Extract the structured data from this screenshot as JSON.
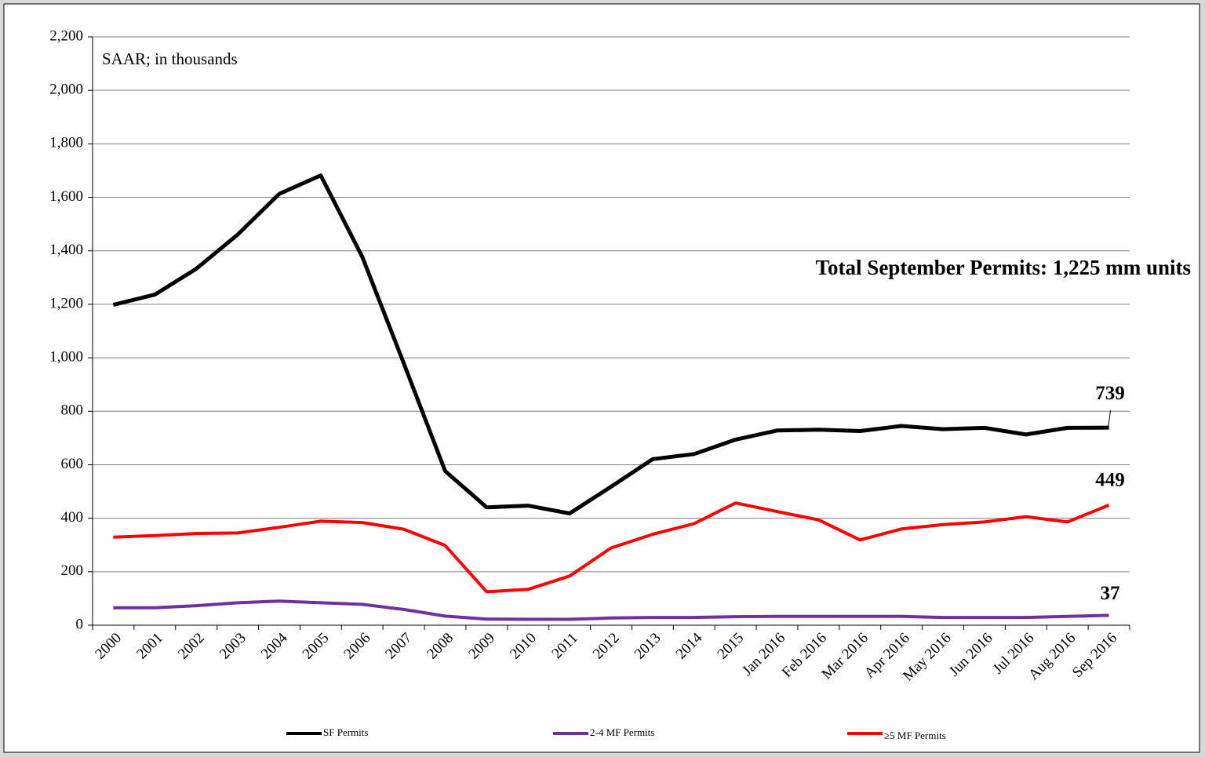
{
  "chart_data": {
    "type": "line",
    "annotations": [
      "SAAR; in thousands",
      "Total September Permits: 1,225 mm units"
    ],
    "categories": [
      "2000",
      "2001",
      "2002",
      "2003",
      "2004",
      "2005",
      "2006",
      "2007",
      "2008",
      "2009",
      "2010",
      "2011",
      "2012",
      "2013",
      "2014",
      "2015",
      "Jan 2016",
      "Feb 2016",
      "Mar 2016",
      "Apr 2016",
      "May 2016",
      "Jun 2016",
      "Jul 2016",
      "Aug 2016",
      "Sep 2016"
    ],
    "series": [
      {
        "name": "SF Permits",
        "color": "#000000",
        "values": [
          1198,
          1236,
          1333,
          1461,
          1613,
          1682,
          1378,
          980,
          576,
          441,
          447,
          418,
          518,
          621,
          640,
          694,
          728,
          731,
          726,
          745,
          733,
          738,
          713,
          738,
          739
        ]
      },
      {
        "name": "2-4 MF Permits",
        "color": "#7030a0",
        "values": [
          65,
          65,
          73,
          84,
          90,
          84,
          78,
          59,
          34,
          23,
          22,
          22,
          27,
          29,
          29,
          32,
          33,
          33,
          33,
          33,
          29,
          29,
          29,
          33,
          37
        ]
      },
      {
        "name": "≥5 MF Permits",
        "color": "#ff0000",
        "values": [
          329,
          335,
          343,
          345,
          366,
          389,
          384,
          359,
          298,
          125,
          134,
          184,
          289,
          340,
          380,
          457,
          425,
          394,
          319,
          360,
          376,
          386,
          406,
          386,
          449
        ]
      }
    ],
    "ylim": [
      0,
      2200
    ],
    "yticks": [
      0,
      200,
      400,
      600,
      800,
      {
        "value": 1000,
        "label": "1,000"
      },
      {
        "value": 1200,
        "label": "1,200"
      },
      {
        "value": 1400,
        "label": "1,400"
      },
      {
        "value": 1600,
        "label": "1,600"
      },
      {
        "value": 1800,
        "label": "1,800"
      },
      {
        "value": 2000,
        "label": "2,000"
      },
      {
        "value": 2200,
        "label": "2,200"
      }
    ],
    "grid": true,
    "legend": "bottom"
  }
}
